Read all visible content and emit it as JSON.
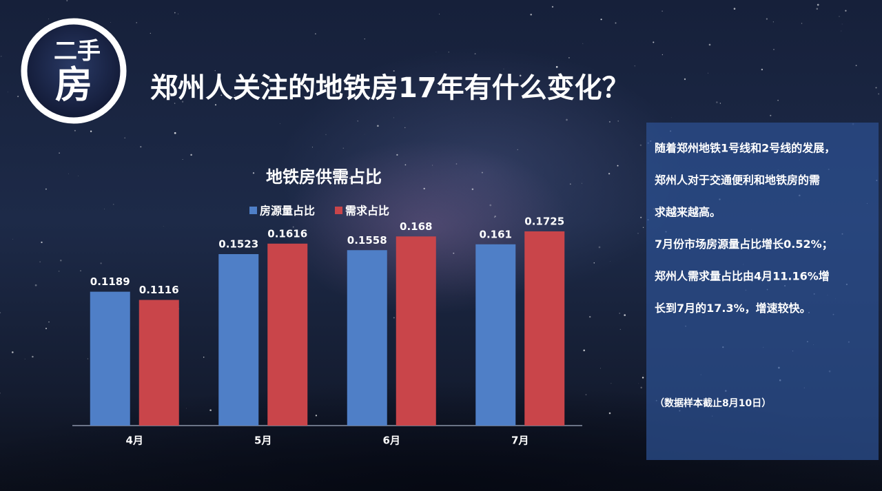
{
  "badge": {
    "top": "二手",
    "bottom": "房"
  },
  "title": "郑州人关注的地铁房17年有什么变化？",
  "chart_data": {
    "type": "bar",
    "title": "地铁房供需占比",
    "categories": [
      "4月",
      "5月",
      "6月",
      "7月"
    ],
    "series": [
      {
        "name": "房源量占比",
        "color": "#4f7fc7",
        "values": [
          0.1189,
          0.1523,
          0.1558,
          0.161
        ]
      },
      {
        "name": "需求占比",
        "color": "#c9454a",
        "values": [
          0.1116,
          0.1616,
          0.168,
          0.1725
        ]
      }
    ]
  },
  "panel": {
    "lines": [
      "随着郑州地铁1号线和2号线的发展，",
      "郑州人对于交通便利和地铁房的需",
      "求越来越高。",
      "7月份市场房源量占比增长0.52%；",
      "郑州人需求量占比由4月11.16%增",
      "长到7月的17.3%，增速较快。"
    ],
    "note": "（数据样本截止8月10日）"
  }
}
